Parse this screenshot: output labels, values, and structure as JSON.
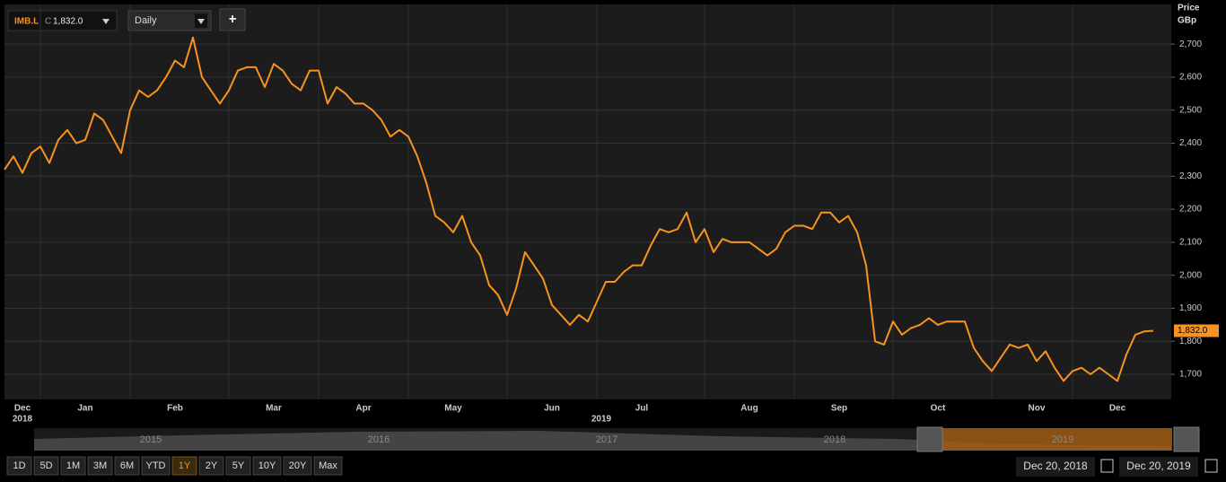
{
  "toolbar": {
    "price_type": "C",
    "price": "1,832.0",
    "interval": "Daily",
    "add": "+"
  },
  "chart_data": {
    "type": "line",
    "y_axis_label": "Price",
    "y_axis_unit": "GBp",
    "categories": [
      null,
      null,
      "Dec",
      null,
      null,
      null,
      null,
      null,
      null,
      "Jan",
      null,
      null,
      null,
      null,
      null,
      null,
      null,
      null,
      null,
      "Feb",
      null,
      null,
      null,
      null,
      null,
      null,
      null,
      null,
      null,
      null,
      "Mar",
      null,
      null,
      null,
      null,
      null,
      null,
      null,
      null,
      null,
      "Apr",
      null,
      null,
      null,
      null,
      null,
      null,
      null,
      null,
      null,
      "May",
      null,
      null,
      null,
      null,
      null,
      null,
      null,
      null,
      null,
      null,
      "Jun",
      null,
      null,
      null,
      null,
      null,
      null,
      null,
      null,
      null,
      "Jul",
      null,
      null,
      null,
      null,
      null,
      null,
      null,
      null,
      null,
      null,
      null,
      "Aug",
      null,
      null,
      null,
      null,
      null,
      null,
      null,
      null,
      null,
      "Sep",
      null,
      null,
      null,
      null,
      null,
      null,
      null,
      null,
      null,
      null,
      "Oct",
      null,
      null,
      null,
      null,
      null,
      null,
      null,
      null,
      null,
      null,
      "Nov",
      null,
      null,
      null,
      null,
      null,
      null,
      null,
      null,
      "Dec",
      null,
      null,
      null,
      null
    ],
    "year_labels": [
      "2018",
      "2019"
    ],
    "series": [
      {
        "name": "IMB.L",
        "color": "#f7931e",
        "values": [
          2320,
          2360,
          2310,
          2370,
          2390,
          2340,
          2410,
          2440,
          2400,
          2410,
          2490,
          2470,
          2420,
          2370,
          2500,
          2560,
          2540,
          2560,
          2600,
          2650,
          2630,
          2720,
          2600,
          2560,
          2520,
          2560,
          2620,
          2630,
          2630,
          2570,
          2640,
          2620,
          2580,
          2560,
          2620,
          2620,
          2520,
          2570,
          2550,
          2520,
          2520,
          2500,
          2470,
          2420,
          2440,
          2420,
          2360,
          2280,
          2180,
          2160,
          2130,
          2180,
          2100,
          2060,
          1970,
          1940,
          1880,
          1960,
          2070,
          2030,
          1990,
          1910,
          1880,
          1850,
          1880,
          1860,
          1920,
          1980,
          1980,
          2010,
          2030,
          2030,
          2090,
          2140,
          2130,
          2140,
          2190,
          2100,
          2140,
          2070,
          2110,
          2100,
          2100,
          2100,
          2080,
          2060,
          2080,
          2130,
          2150,
          2150,
          2140,
          2190,
          2190,
          2160,
          2180,
          2130,
          2030,
          1800,
          1790,
          1860,
          1820,
          1840,
          1850,
          1870,
          1850,
          1860,
          1860,
          1860,
          1780,
          1740,
          1710,
          1750,
          1790,
          1780,
          1790,
          1740,
          1770,
          1720,
          1680,
          1710,
          1720,
          1700,
          1720,
          1700,
          1680,
          1760,
          1820,
          1830,
          1832
        ]
      }
    ],
    "ylim": [
      1624,
      2820
    ],
    "yticks": [
      {
        "value": 1700,
        "label": "1,700"
      },
      {
        "value": 1800,
        "label": "1,800"
      },
      {
        "value": 1900,
        "label": "1,900"
      },
      {
        "value": 2000,
        "label": "2,000"
      },
      {
        "value": 2100,
        "label": "2,100"
      },
      {
        "value": 2200,
        "label": "2,200"
      },
      {
        "value": 2300,
        "label": "2,300"
      },
      {
        "value": 2400,
        "label": "2,400"
      },
      {
        "value": 2500,
        "label": "2,500"
      },
      {
        "value": 2600,
        "label": "2,600"
      },
      {
        "value": 2700,
        "label": "2,700"
      }
    ],
    "grid": true,
    "last_label": {
      "value": 1832,
      "label": "1,832.0"
    }
  },
  "navigator": {
    "years": [
      "2015",
      "2016",
      "2017",
      "2018",
      "2019"
    ]
  },
  "range_buttons": {
    "items": [
      "1D",
      "5D",
      "1M",
      "3M",
      "6M",
      "YTD",
      "1Y",
      "2Y",
      "5Y",
      "10Y",
      "20Y",
      "Max"
    ],
    "active": 6
  },
  "date_range": {
    "from": "Dec 20, 2018",
    "to": "Dec 20, 2019"
  }
}
